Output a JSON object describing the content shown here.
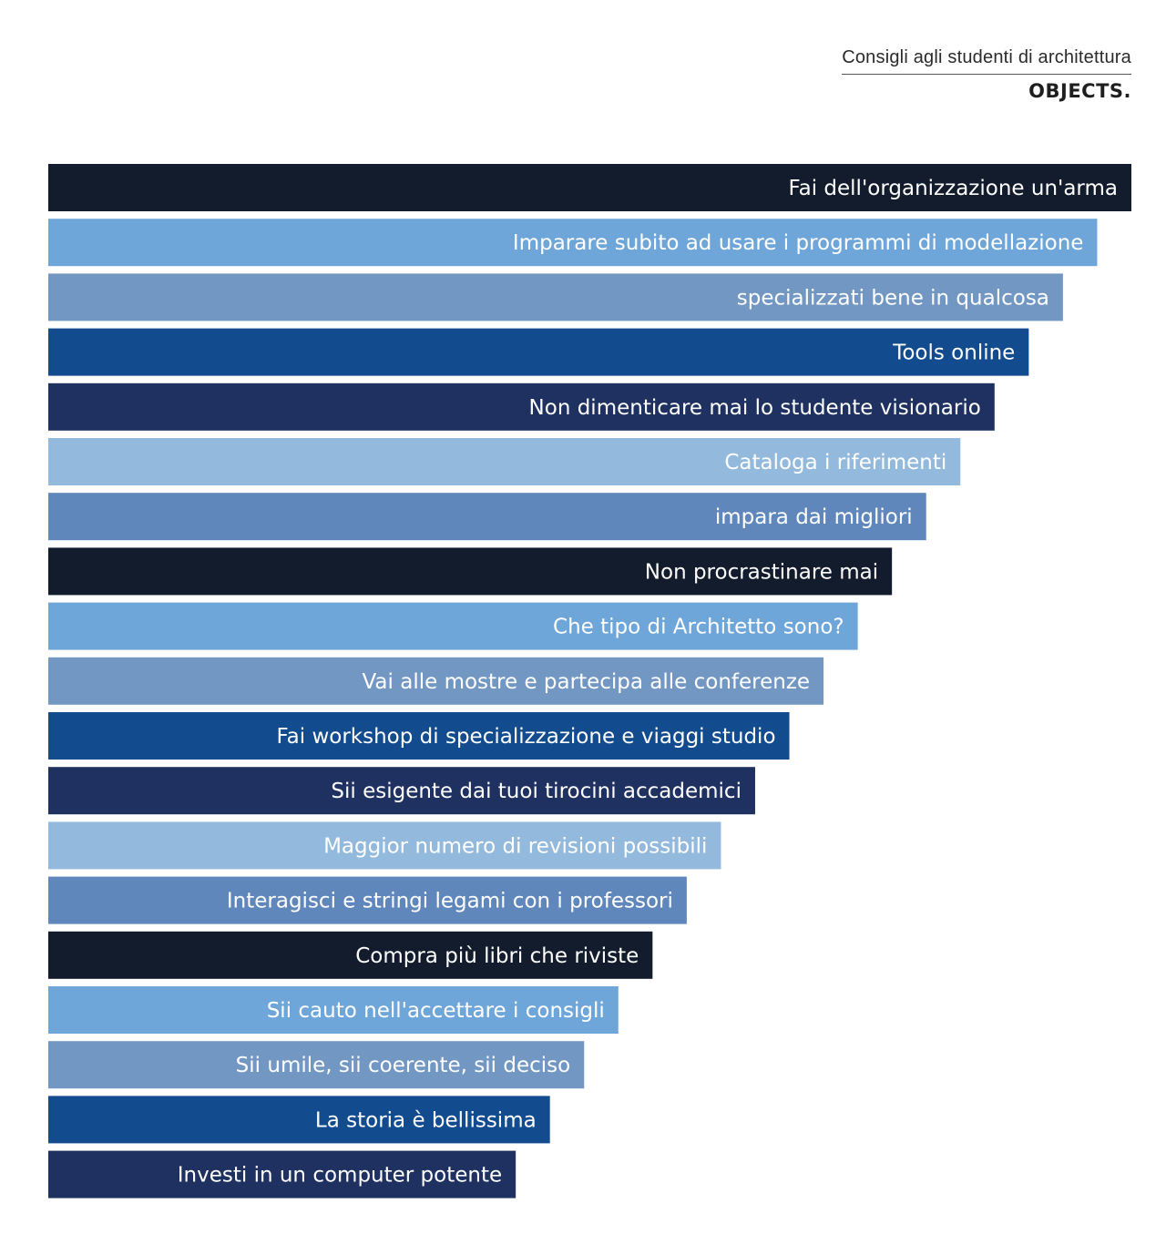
{
  "header": {
    "subtitle": "Consigli agli studenti di architettura",
    "brand": "OBJECTS."
  },
  "chart_data": {
    "type": "bar",
    "orientation": "horizontal",
    "title": "Consigli agli studenti di architettura",
    "xlabel": "",
    "ylabel": "",
    "grid": false,
    "labels_inside_bars": true,
    "categories": [
      "Fai dell'organizzazione un'arma",
      "Imparare subito ad usare i programmi di modellazione",
      "specializzati bene in qualcosa",
      "Tools online",
      "Non dimenticare mai lo studente visionario",
      "Cataloga i riferimenti",
      "impara dai migliori",
      "Non procrastinare mai",
      "Che tipo di Architetto sono?",
      "Vai alle mostre e partecipa alle conferenze",
      "Fai workshop di specializzazione e viaggi studio",
      "Sii esigente dai tuoi tirocini accademici",
      "Maggior numero di revisioni possibili",
      "Interagisci e stringi legami con i professori",
      "Compra più libri che riviste",
      "Sii cauto nell'accettare i consigli",
      "Sii umile, sii coerente, sii deciso",
      "La storia è bellissima",
      "Investi in un computer potente"
    ],
    "values": [
      19,
      18.4,
      17.8,
      17.2,
      16.6,
      16.0,
      15.4,
      14.8,
      14.2,
      13.6,
      13.0,
      12.4,
      11.8,
      11.2,
      10.6,
      10.0,
      9.4,
      8.8,
      8.2
    ],
    "xlim": [
      0,
      19
    ],
    "colors": [
      "#121c2d",
      "#6fa6d9",
      "#7297c3",
      "#124b8e",
      "#1e3160",
      "#93b9dc",
      "#5f87bc"
    ]
  }
}
